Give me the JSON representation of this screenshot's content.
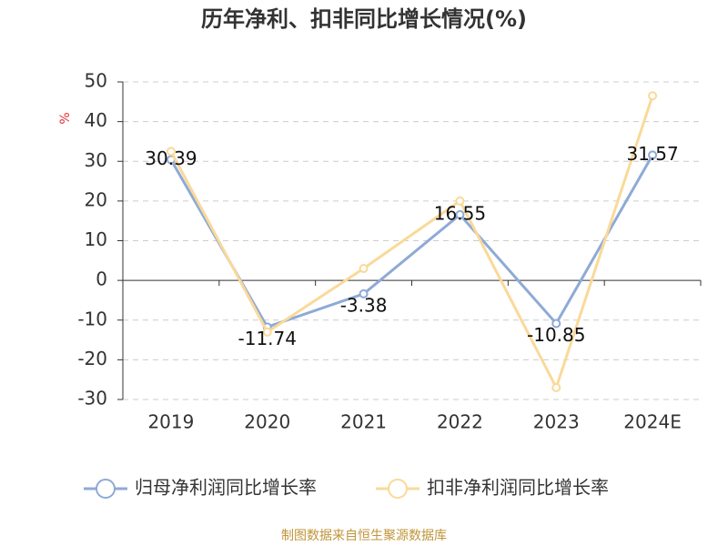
{
  "chart_data": {
    "type": "line",
    "title": "历年净利、扣非同比增长情况(%)",
    "y_label": "%",
    "categories": [
      "2019",
      "2020",
      "2021",
      "2022",
      "2023",
      "2024E"
    ],
    "series": [
      {
        "name": "归母净利润同比增长率",
        "color": "#8eaad6",
        "values": [
          30.39,
          -11.74,
          -3.38,
          16.55,
          -10.85,
          31.57
        ],
        "show_labels": true
      },
      {
        "name": "扣非净利润同比增长率",
        "color": "#fad999",
        "values": [
          32.5,
          -13,
          3,
          20,
          -27,
          46.5
        ],
        "show_labels": false
      }
    ],
    "ylim": [
      -30,
      50
    ],
    "yticks": [
      -30,
      -20,
      -10,
      0,
      10,
      20,
      30,
      40,
      50
    ],
    "grid": true,
    "source": "制图数据来自恒生聚源数据库"
  }
}
